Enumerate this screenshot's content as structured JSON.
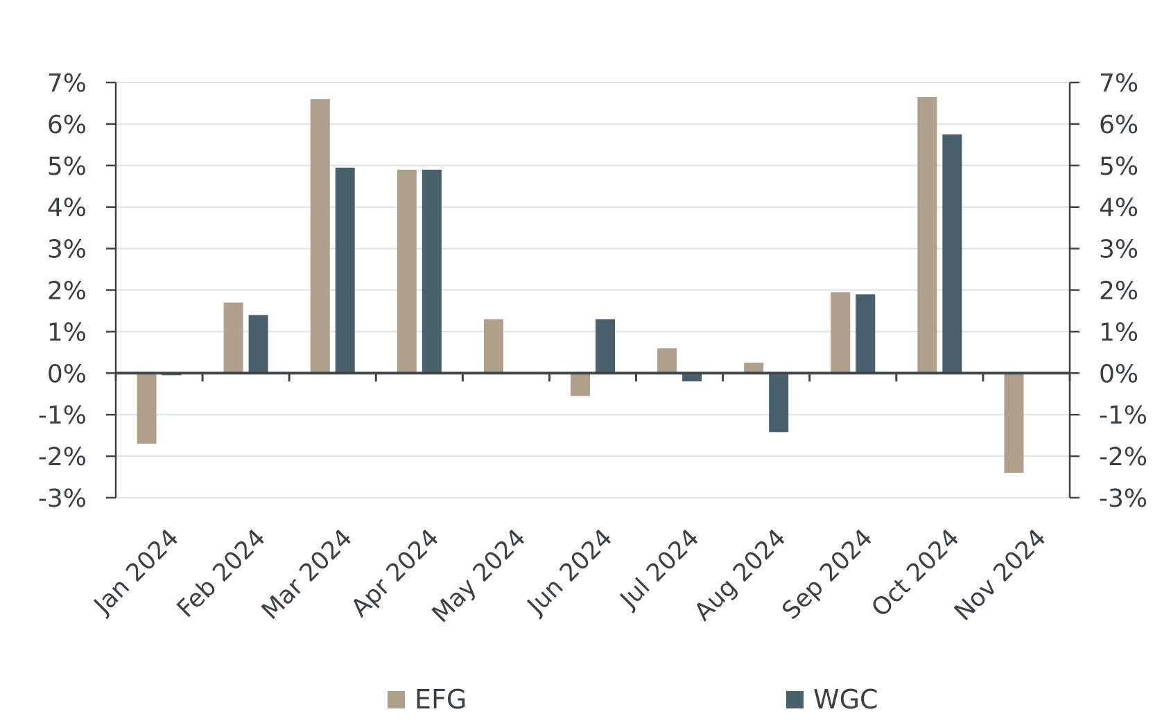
{
  "chart_data": {
    "type": "bar",
    "categories": [
      "Jan 2024",
      "Feb 2024",
      "Mar 2024",
      "Apr 2024",
      "May 2024",
      "Jun 2024",
      "Jul 2024",
      "Aug 2024",
      "Sep 2024",
      "Oct 2024",
      "Nov 2024"
    ],
    "series": [
      {
        "name": "EFG",
        "color": "#b09f8a",
        "values": [
          -1.7,
          1.7,
          6.6,
          4.9,
          1.3,
          -0.55,
          0.6,
          0.25,
          1.95,
          6.65,
          -2.4
        ]
      },
      {
        "name": "WGC",
        "color": "#48606b",
        "values": [
          -0.05,
          1.4,
          4.95,
          4.9,
          0.0,
          1.3,
          -0.2,
          -1.42,
          1.9,
          5.75,
          0.0
        ]
      }
    ],
    "ylim": [
      -3,
      7
    ],
    "y_ticks": [
      "7%",
      "6%",
      "5%",
      "4%",
      "3%",
      "2%",
      "1%",
      "0%",
      "-1%",
      "-2%",
      "-3%"
    ],
    "y_tick_values": [
      7,
      6,
      5,
      4,
      3,
      2,
      1,
      0,
      -1,
      -2,
      -3
    ],
    "title": "",
    "xlabel": "",
    "ylabel": "",
    "grid": true,
    "dual_y_axis": true,
    "legend_position": "bottom"
  }
}
